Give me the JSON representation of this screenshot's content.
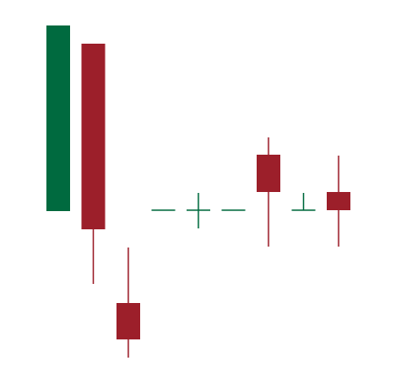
{
  "chart_data": {
    "type": "candlestick",
    "title": "",
    "xlabel": "",
    "ylabel": "",
    "grid": false,
    "legend": "none",
    "x_axis_visible": false,
    "y_axis_visible": false,
    "ylim": [
      0,
      422
    ],
    "colors": {
      "up": "#006a3f",
      "down": "#9c1f2a"
    },
    "candles": [
      {
        "index": 0,
        "open": 190,
        "high": 394,
        "low": 190,
        "close": 394
      },
      {
        "index": 1,
        "open": 374,
        "high": 374,
        "low": 110,
        "close": 170
      },
      {
        "index": 2,
        "open": 89,
        "high": 150,
        "low": 29,
        "close": 49
      },
      {
        "index": 3,
        "open": 191,
        "high": 191,
        "low": 191,
        "close": 191
      },
      {
        "index": 4,
        "open": 191,
        "high": 210,
        "low": 171,
        "close": 191
      },
      {
        "index": 5,
        "open": 191,
        "high": 191,
        "low": 191,
        "close": 191
      },
      {
        "index": 6,
        "open": 252,
        "high": 271,
        "low": 151,
        "close": 211
      },
      {
        "index": 7,
        "open": 191,
        "high": 210,
        "low": 191,
        "close": 191
      },
      {
        "index": 8,
        "open": 211,
        "high": 251,
        "low": 151,
        "close": 191
      }
    ]
  }
}
